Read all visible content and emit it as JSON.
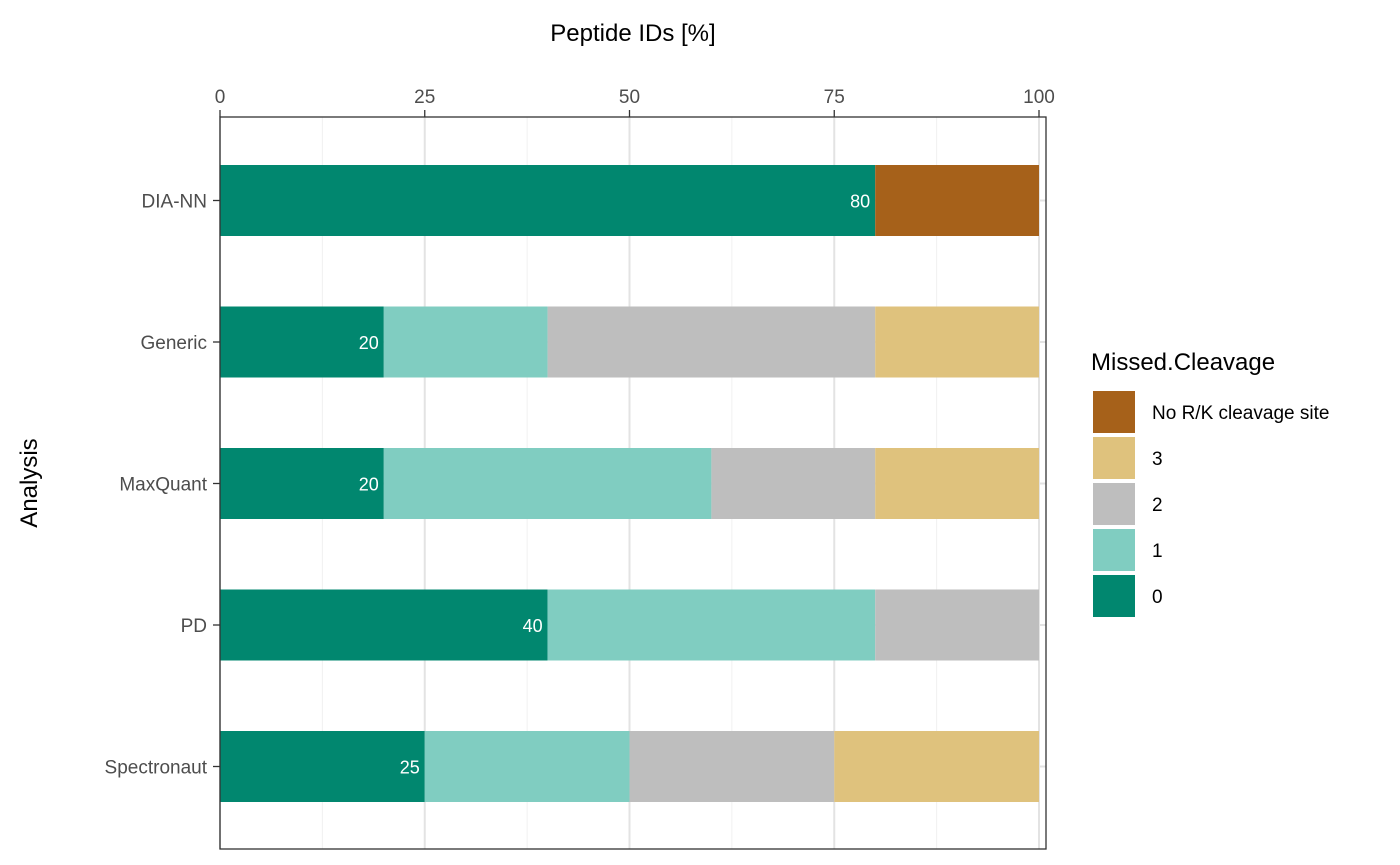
{
  "chart_data": {
    "type": "bar",
    "orientation": "horizontal",
    "stacked": true,
    "xlabel": "Peptide IDs [%]",
    "ylabel": "Analysis",
    "xlim": [
      0,
      100
    ],
    "x_ticks": [
      0,
      25,
      50,
      75,
      100
    ],
    "x_axis_position": "top",
    "grid": true,
    "categories": [
      "DIA-NN",
      "Generic",
      "MaxQuant",
      "PD",
      "Spectronaut"
    ],
    "series": [
      {
        "name": "0",
        "color": "#01876f",
        "values": [
          80,
          20,
          20,
          40,
          25
        ]
      },
      {
        "name": "1",
        "color": "#80cdc1",
        "values": [
          0,
          20,
          40,
          40,
          25
        ]
      },
      {
        "name": "2",
        "color": "#bebebe",
        "values": [
          0,
          40,
          20,
          20,
          25
        ]
      },
      {
        "name": "3",
        "color": "#dfc27d",
        "values": [
          0,
          20,
          20,
          0,
          25
        ]
      },
      {
        "name": "No R/K cleavage site",
        "color": "#a6611a",
        "values": [
          20,
          0,
          0,
          0,
          0
        ]
      }
    ],
    "data_labels": {
      "series": "0",
      "values": [
        80,
        20,
        20,
        40,
        25
      ],
      "color": "#ffffff"
    },
    "legend": {
      "title": "Missed.Cleavage",
      "position": "right",
      "order": [
        "No R/K cleavage site",
        "3",
        "2",
        "1",
        "0"
      ]
    }
  }
}
